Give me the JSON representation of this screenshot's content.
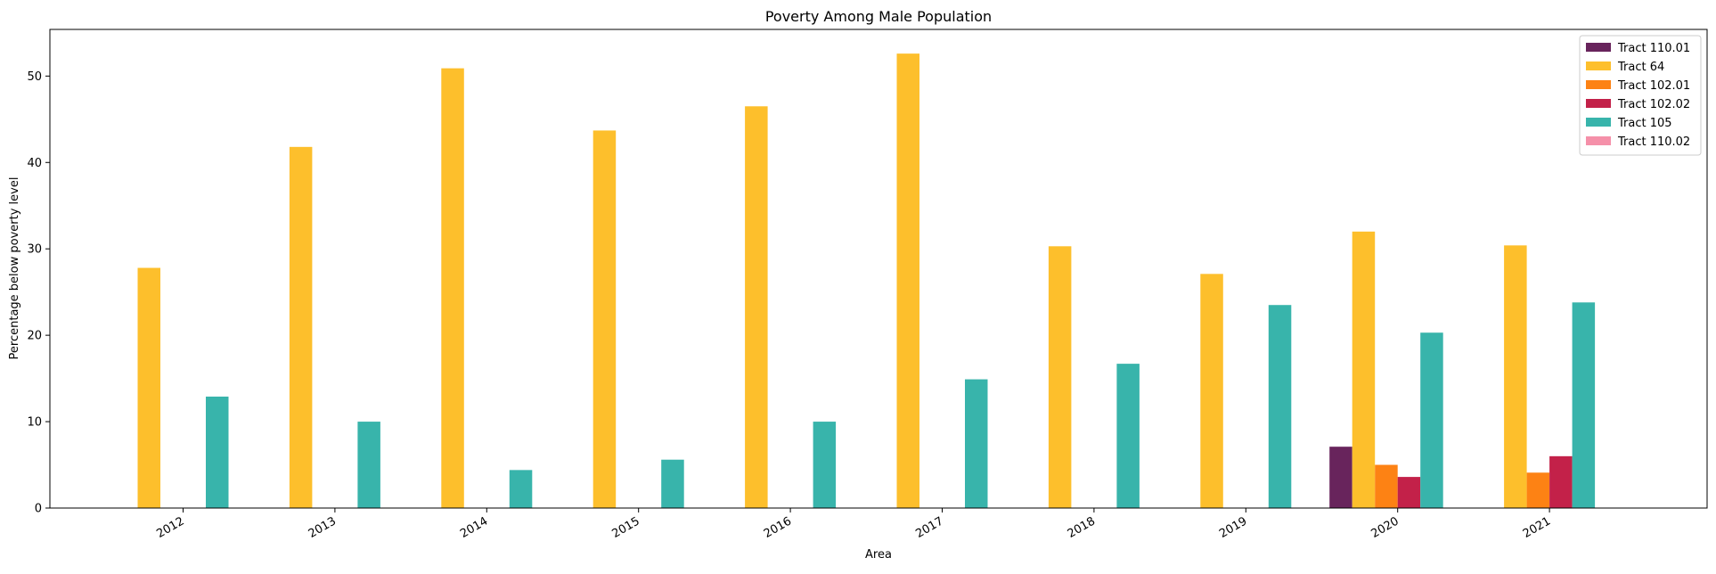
{
  "chart_data": {
    "type": "bar",
    "title": "Poverty Among Male Population",
    "xlabel": "Area",
    "ylabel": "Percentage below poverty level",
    "ylim": [
      0,
      55.4
    ],
    "yticks": [
      0,
      10,
      20,
      30,
      40,
      50
    ],
    "categories": [
      "2012",
      "2013",
      "2014",
      "2015",
      "2016",
      "2017",
      "2018",
      "2019",
      "2020",
      "2021"
    ],
    "legend_position": "top-right",
    "grid": false,
    "series": [
      {
        "name": "Tract 110.01",
        "color": "#68245c",
        "values": [
          null,
          null,
          null,
          null,
          null,
          null,
          null,
          null,
          7.1,
          null
        ]
      },
      {
        "name": "Tract 64",
        "color": "#fdbf2c",
        "values": [
          27.8,
          41.8,
          50.9,
          43.7,
          46.5,
          52.6,
          30.3,
          27.1,
          32.0,
          30.4
        ]
      },
      {
        "name": "Tract 102.01",
        "color": "#fd8214",
        "values": [
          null,
          null,
          null,
          null,
          null,
          null,
          null,
          null,
          5.0,
          4.1
        ]
      },
      {
        "name": "Tract 102.02",
        "color": "#c32149",
        "values": [
          null,
          null,
          null,
          null,
          null,
          null,
          null,
          null,
          3.6,
          6.0
        ]
      },
      {
        "name": "Tract 105",
        "color": "#38b4ab",
        "values": [
          12.9,
          10.0,
          4.4,
          5.6,
          10.0,
          14.9,
          16.7,
          23.5,
          20.3,
          23.8
        ]
      },
      {
        "name": "Tract 110.02",
        "color": "#f590a9",
        "values": [
          null,
          null,
          null,
          null,
          null,
          null,
          null,
          null,
          null,
          null
        ]
      }
    ]
  }
}
